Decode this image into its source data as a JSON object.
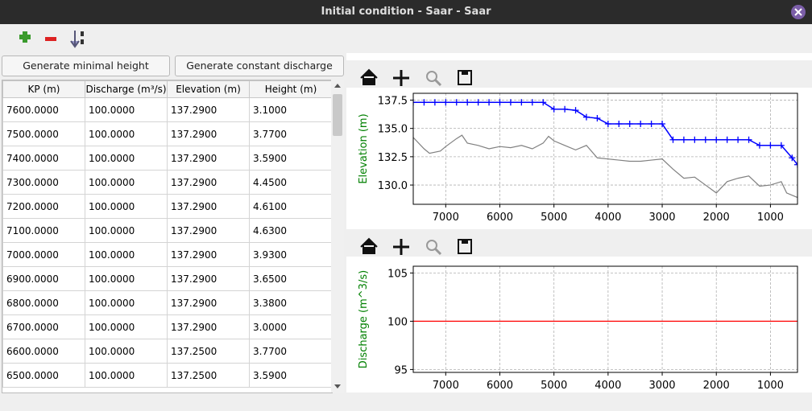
{
  "window": {
    "title": "Initial condition - Saar - Saar"
  },
  "buttons": [
    "Generate minimal height",
    "Generate constant discharge"
  ],
  "table": {
    "headers": [
      "KP (m)",
      "Discharge (m³/s)",
      "Elevation (m)",
      "Height (m)"
    ],
    "rows": [
      [
        "7600.0000",
        "100.0000",
        "137.2900",
        "3.1000"
      ],
      [
        "7500.0000",
        "100.0000",
        "137.2900",
        "3.7700"
      ],
      [
        "7400.0000",
        "100.0000",
        "137.2900",
        "3.5900"
      ],
      [
        "7300.0000",
        "100.0000",
        "137.2900",
        "4.4500"
      ],
      [
        "7200.0000",
        "100.0000",
        "137.2900",
        "4.6100"
      ],
      [
        "7100.0000",
        "100.0000",
        "137.2900",
        "4.6300"
      ],
      [
        "7000.0000",
        "100.0000",
        "137.2900",
        "3.9300"
      ],
      [
        "6900.0000",
        "100.0000",
        "137.2900",
        "3.6500"
      ],
      [
        "6800.0000",
        "100.0000",
        "137.2900",
        "3.3800"
      ],
      [
        "6700.0000",
        "100.0000",
        "137.2900",
        "3.0000"
      ],
      [
        "6600.0000",
        "100.0000",
        "137.2500",
        "3.7700"
      ],
      [
        "6500.0000",
        "100.0000",
        "137.2500",
        "3.5900"
      ]
    ]
  },
  "chart_data": [
    {
      "type": "line",
      "y_label": "Elevation (m)",
      "xlim": [
        7600,
        500
      ],
      "ylim": [
        128.3,
        138.1
      ],
      "xticks": [
        7000,
        6000,
        5000,
        4000,
        3000,
        2000,
        1000
      ],
      "yticks": [
        137.5,
        {
          "value": 135,
          "label": "135.0"
        },
        132.5,
        {
          "value": 130,
          "label": "130.0"
        }
      ],
      "grid": true,
      "series": [
        {
          "color": "#0000ff",
          "marker": "+",
          "x": [
            7600,
            7400,
            7200,
            7000,
            6800,
            6600,
            6400,
            6200,
            6000,
            5800,
            5600,
            5400,
            5200,
            5000,
            4800,
            4600,
            4400,
            4200,
            4000,
            3800,
            3600,
            3400,
            3200,
            3000,
            2800,
            2600,
            2400,
            2200,
            2000,
            1800,
            1600,
            1400,
            1200,
            1000,
            800,
            600,
            500
          ],
          "values": [
            137.3,
            137.3,
            137.3,
            137.3,
            137.3,
            137.3,
            137.3,
            137.3,
            137.3,
            137.3,
            137.3,
            137.3,
            137.3,
            136.7,
            136.7,
            136.6,
            136.0,
            135.9,
            135.4,
            135.4,
            135.4,
            135.4,
            135.4,
            135.4,
            134.0,
            134.0,
            134.0,
            134.0,
            134.0,
            134.0,
            134.0,
            134.0,
            133.5,
            133.5,
            133.5,
            132.4,
            131.8
          ]
        },
        {
          "color": "#808080",
          "x": [
            7600,
            7400,
            7300,
            7100,
            7000,
            6800,
            6700,
            6600,
            6400,
            6200,
            6000,
            5800,
            5600,
            5400,
            5200,
            5100,
            5000,
            4800,
            4600,
            4400,
            4200,
            4000,
            3800,
            3600,
            3400,
            3200,
            3000,
            2800,
            2600,
            2400,
            2200,
            2000,
            1800,
            1600,
            1400,
            1200,
            1000,
            800,
            700,
            500
          ],
          "values": [
            134.2,
            133.2,
            132.8,
            133.0,
            133.4,
            134.1,
            134.4,
            133.7,
            133.5,
            133.2,
            133.4,
            133.3,
            133.5,
            133.2,
            133.7,
            134.3,
            133.9,
            133.5,
            133.1,
            133.5,
            132.4,
            132.3,
            132.2,
            132.1,
            132.1,
            132.2,
            132.3,
            131.4,
            130.6,
            130.7,
            130.0,
            129.3,
            130.3,
            130.6,
            130.8,
            129.9,
            130.0,
            130.3,
            129.3,
            128.9
          ]
        }
      ]
    },
    {
      "type": "line",
      "y_label": "Discharge (m^3/s)",
      "xlim": [
        7600,
        500
      ],
      "ylim": [
        94.7,
        105.7
      ],
      "xticks": [
        7000,
        6000,
        5000,
        4000,
        3000,
        2000,
        1000
      ],
      "yticks": [
        95,
        100,
        105
      ],
      "grid": true,
      "series": [
        {
          "color": "#ff0000",
          "x": [
            7600,
            500
          ],
          "values": [
            100,
            100
          ]
        }
      ]
    }
  ]
}
